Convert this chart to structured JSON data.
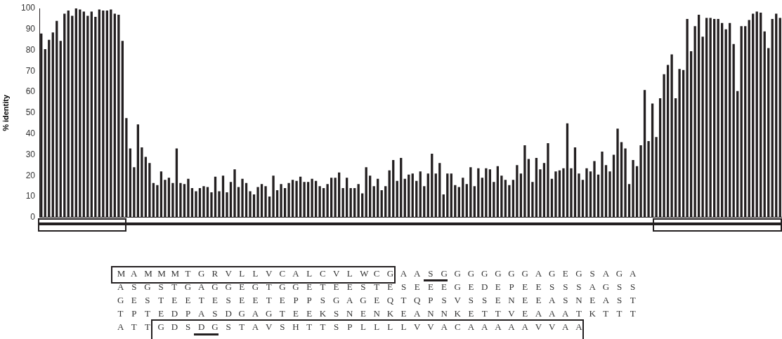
{
  "chart_data": {
    "type": "bar",
    "ylabel": "% identity",
    "color": "#231f20",
    "categories": [
      null,
      null,
      null,
      null,
      null,
      null,
      null,
      null,
      null,
      null,
      null,
      null,
      null,
      null,
      null,
      null,
      null,
      null,
      null,
      null,
      null,
      null,
      null,
      null,
      null,
      null,
      null,
      null,
      null,
      null,
      null,
      null,
      null,
      null,
      null,
      null,
      null,
      null,
      null,
      null,
      null,
      null,
      null,
      null,
      null,
      null,
      null,
      null,
      null,
      null,
      null,
      null,
      null,
      null,
      null,
      null,
      null,
      null,
      null,
      null,
      null,
      null,
      null,
      null,
      null,
      null,
      null,
      null,
      null,
      null,
      null,
      null,
      null,
      null,
      null,
      null,
      null,
      null,
      null,
      null,
      null,
      null,
      null,
      null,
      null,
      null,
      null,
      null,
      null,
      null,
      null,
      null,
      null,
      null,
      null,
      null,
      null,
      null,
      null,
      null,
      null,
      null,
      null,
      null,
      null,
      null,
      null,
      null,
      null,
      null,
      null,
      null,
      null,
      null,
      null,
      null,
      null,
      null,
      null,
      null,
      null,
      null,
      null,
      null,
      null,
      null,
      null,
      null,
      null,
      null,
      null,
      null,
      null,
      null,
      null,
      null,
      null,
      null,
      null,
      null,
      null,
      null,
      null,
      null,
      null,
      null,
      null,
      null,
      null,
      null,
      null,
      null,
      null,
      null,
      null,
      null,
      null,
      null,
      null,
      null,
      null,
      null,
      null,
      null,
      null,
      null,
      null,
      null,
      null,
      null,
      null,
      null,
      null,
      null,
      null,
      null,
      null,
      null,
      null,
      null,
      null,
      null,
      null,
      null,
      null,
      null,
      null,
      null,
      null,
      null,
      null,
      null
    ],
    "values": [
      88,
      80.5,
      85,
      88.5,
      94,
      84.5,
      97.5,
      99,
      96.5,
      100,
      99.5,
      98.5,
      96.5,
      98.5,
      96,
      99.5,
      99,
      99,
      99.5,
      97.5,
      97,
      84.5,
      47.5,
      33,
      24,
      44.5,
      33.5,
      29,
      26,
      16.5,
      15.5,
      22,
      18,
      19,
      16.5,
      33,
      16.5,
      16,
      18.5,
      14,
      12.5,
      14,
      15,
      14.5,
      12,
      19.5,
      12.5,
      20,
      12,
      17,
      23,
      14.5,
      18.5,
      16.5,
      12.5,
      11,
      14.5,
      16,
      15,
      10,
      20,
      13,
      16,
      14,
      16.5,
      18,
      17.5,
      19.5,
      17,
      17,
      18.5,
      17.5,
      15,
      14,
      16,
      19,
      19,
      21.5,
      14,
      19,
      14,
      14,
      16,
      11.5,
      24,
      20,
      15,
      18.5,
      13,
      15,
      22.5,
      27.5,
      17.5,
      28.5,
      18.5,
      20.5,
      21,
      17.5,
      22,
      15,
      21,
      30.5,
      21,
      26,
      11,
      21,
      21,
      15.5,
      14.5,
      19,
      16,
      24,
      15,
      23.5,
      19,
      23.5,
      23,
      17,
      24.5,
      20,
      18,
      15.5,
      18,
      25,
      21,
      34.5,
      28,
      17,
      28.5,
      23,
      26,
      35.5,
      18.5,
      22,
      22.5,
      23.5,
      45,
      23.5,
      33.5,
      21,
      18,
      23.5,
      22,
      27,
      20.5,
      31.5,
      25,
      22,
      30,
      42.5,
      36,
      33,
      16,
      27.5,
      24.5,
      34.5,
      61,
      36.5,
      54.5,
      38.5,
      57,
      68.5,
      73,
      78,
      57,
      71,
      70.5,
      95,
      79.5,
      91.5,
      97,
      86.5,
      95.5,
      95.5,
      95,
      95,
      93,
      90,
      93,
      83,
      60.5,
      91.5,
      91.5,
      94.5,
      97.5,
      98.5,
      98,
      89,
      81,
      95,
      97.5,
      95.5
    ],
    "ylim": [
      0,
      100
    ],
    "yticks": [
      0,
      10,
      20,
      30,
      40,
      50,
      60,
      70,
      80,
      90,
      100
    ],
    "grid": false,
    "annotations": [
      "M A M M M T G R V L L V C A L C V L W C G A A S G G G G G G G A G E G S A G A",
      "A S G S T G A G G E G T G G E T E E S T E S E E E G E D E P E E S S S A G S S",
      "G E S T E E T E S E E T E P P S G A G E Q T Q P S V S S E N E E A S N E A S T",
      "T P T E D P A S D G A G T E E K S N E N K E A N N K E T T V E A A A T K T T T",
      "A T T G D S D G S T A V S H T T S P L L L L V V A C A A A A A V V A A"
    ]
  }
}
